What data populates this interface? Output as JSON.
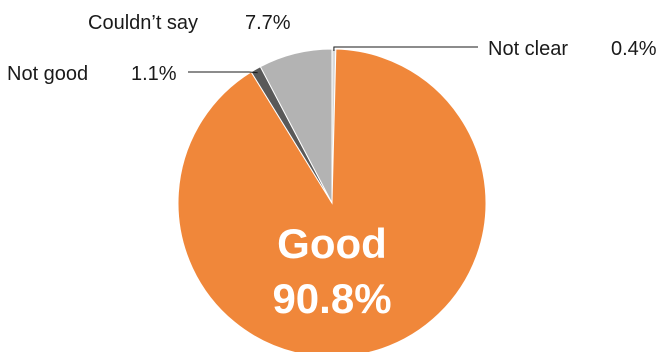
{
  "chart_data": {
    "type": "pie",
    "slices": [
      {
        "label": "Good",
        "value": 90.8,
        "value_text": "90.8%",
        "color": "#f0873a"
      },
      {
        "label": "Not good",
        "value": 1.1,
        "value_text": "1.1%",
        "color": "#595959"
      },
      {
        "label": "Couldn’t say",
        "value": 7.7,
        "value_text": "7.7%",
        "color": "#b3b3b3"
      },
      {
        "label": "Not clear",
        "value": 0.4,
        "value_text": "0.4%",
        "color": "#d9d9d9"
      }
    ],
    "start": "12 o'clock",
    "direction": "clockwise",
    "slice_border_color": "#ffffff",
    "callout_line_color": "#1a1a1a"
  }
}
